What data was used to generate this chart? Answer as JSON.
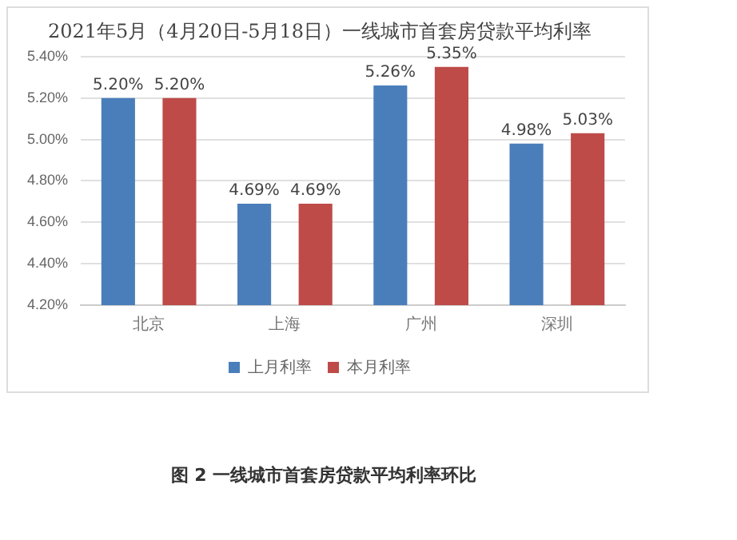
{
  "chart_data": {
    "type": "bar",
    "title": "2021年5月（4月20日-5月18日）一线城市首套房贷款平均利率",
    "categories": [
      "北京",
      "上海",
      "广州",
      "深圳"
    ],
    "series": [
      {
        "name": "上月利率",
        "color": "#4a7ebb",
        "values": [
          5.2,
          4.69,
          5.26,
          4.98
        ],
        "value_labels": [
          "5.20%",
          "4.69%",
          "5.26%",
          "4.98%"
        ]
      },
      {
        "name": "本月利率",
        "color": "#be4b48",
        "values": [
          5.2,
          4.69,
          5.35,
          5.03
        ],
        "value_labels": [
          "5.20%",
          "4.69%",
          "5.35%",
          "5.03%"
        ]
      }
    ],
    "ylim": [
      4.2,
      5.4
    ],
    "yticks": [
      {
        "value": 4.2,
        "label": "4.20%"
      },
      {
        "value": 4.4,
        "label": "4.40%"
      },
      {
        "value": 4.6,
        "label": "4.60%"
      },
      {
        "value": 4.8,
        "label": "4.80%"
      },
      {
        "value": 5.0,
        "label": "5.00%"
      },
      {
        "value": 5.2,
        "label": "5.20%"
      },
      {
        "value": 5.4,
        "label": "5.40%"
      }
    ],
    "grid": "y",
    "legend": "bottom",
    "annotations": [
      "图 2 一线城市首套房贷款平均利率环比"
    ]
  }
}
